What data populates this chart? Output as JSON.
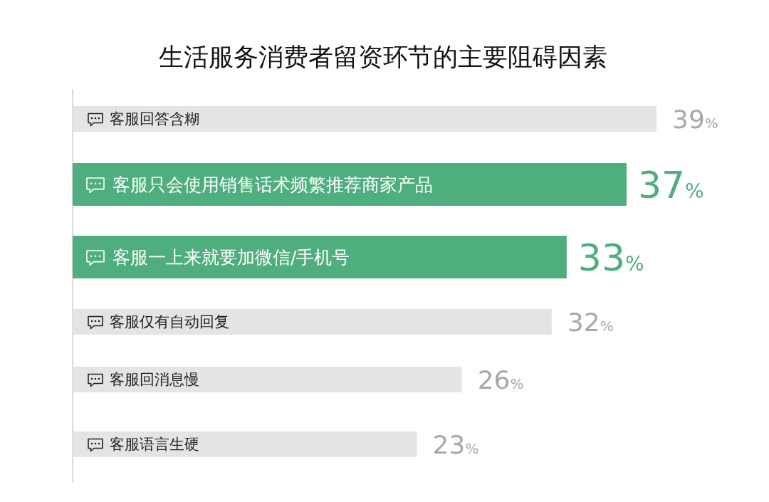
{
  "chart_data": {
    "type": "bar",
    "orientation": "horizontal",
    "title": "生活服务消费者留资环节的主要阻碍因素",
    "categories": [
      "客服回答含糊",
      "客服只会使用销售话术频繁推荐商家产品",
      "客服一上来就要加微信/手机号",
      "客服仅有自动回复",
      "客服回消息慢",
      "客服语言生硬"
    ],
    "values": [
      39,
      37,
      33,
      32,
      26,
      23
    ],
    "colors": [
      "#e4e4e4",
      "#4fae7e",
      "#4fae7e",
      "#e4e4e4",
      "#e4e4e4",
      "#e4e4e4"
    ],
    "value_labels": [
      "39%",
      "37%",
      "33%",
      "32%",
      "26%",
      "23%"
    ]
  }
}
